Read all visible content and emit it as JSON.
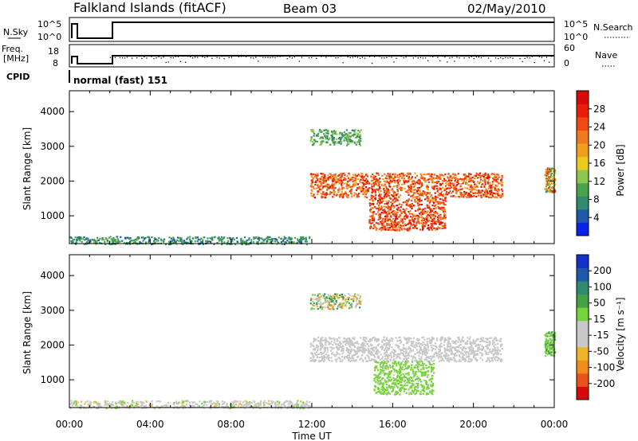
{
  "header": {
    "station": "Falkland Islands (fitACF)",
    "beam": "Beam 03",
    "date": "02/May/2010"
  },
  "strips": {
    "nsky_label": "N.Sky",
    "nsky_ticks": [
      "10^5",
      "10^0"
    ],
    "nsearch_label": "N.Search",
    "nsearch_ticks": [
      "10^5",
      "10^0"
    ],
    "freq_label": "Freq.",
    "freq_unit": "[MHz]",
    "freq_ticks": [
      "18",
      "8"
    ],
    "nave_label": "Nave",
    "nave_ticks": [
      "60",
      "0"
    ],
    "cpid_label": "CPID",
    "cpid_value": "normal (fast) 151"
  },
  "colors": {
    "power_scale": [
      "#0a22e6",
      "#1e5aa8",
      "#2f8a6e",
      "#4aa24a",
      "#8cc850",
      "#e8cc1e",
      "#f0a01e",
      "#f07a1e",
      "#ee4a12",
      "#e81e0a",
      "#d60a0a"
    ],
    "velocity_scale": [
      "#d60a0a",
      "#e8521e",
      "#f08c1e",
      "#f0b428",
      "#c8c8c8",
      "#c8c8c8",
      "#78d23c",
      "#46a046",
      "#2f8a6e",
      "#1e5aa8",
      "#1432c8"
    ]
  },
  "chart_data": [
    {
      "type": "heatmap",
      "name": "power",
      "xlabel": "",
      "ylabel": "Slant Range [km]",
      "ylim": [
        200,
        4600
      ],
      "yticks": [
        1000,
        2000,
        3000,
        4000
      ],
      "xlim_hours": [
        0,
        24
      ],
      "colorbar": {
        "label": "Power [dB]",
        "ticks": [
          "28",
          "24",
          "20",
          "16",
          "12",
          "8",
          "4"
        ],
        "range": [
          0,
          32
        ]
      },
      "regions": [
        {
          "t": [
            0.0,
            11.9
          ],
          "r": [
            200,
            420
          ],
          "value_range": [
            4,
            12
          ]
        },
        {
          "t": [
            11.9,
            21.4
          ],
          "r": [
            1550,
            2250
          ],
          "value_range": [
            18,
            30
          ]
        },
        {
          "t": [
            14.8,
            18.6
          ],
          "r": [
            600,
            1550
          ],
          "value_range": [
            20,
            30
          ]
        },
        {
          "t": [
            11.9,
            14.4
          ],
          "r": [
            3050,
            3500
          ],
          "value_range": [
            6,
            14
          ]
        },
        {
          "t": [
            23.5,
            24.0
          ],
          "r": [
            1700,
            2400
          ],
          "value_range": [
            6,
            28
          ]
        }
      ]
    },
    {
      "type": "heatmap",
      "name": "velocity",
      "xlabel": "Time UT",
      "ylabel": "Slant Range [km]",
      "ylim": [
        200,
        4600
      ],
      "yticks": [
        1000,
        2000,
        3000,
        4000
      ],
      "xlim_hours": [
        0,
        24
      ],
      "xticks": [
        "00:00",
        "04:00",
        "08:00",
        "12:00",
        "16:00",
        "20:00",
        "00:00"
      ],
      "colorbar": {
        "label": "Velocity [m s⁻¹]",
        "ticks": [
          "200",
          "100",
          "50",
          "15",
          "-15",
          "-50",
          "-100",
          "-200"
        ],
        "range": [
          -250,
          250
        ]
      },
      "regions": [
        {
          "t": [
            0.0,
            11.9
          ],
          "r": [
            200,
            420
          ],
          "value_range": [
            -80,
            40
          ]
        },
        {
          "t": [
            11.9,
            21.4
          ],
          "r": [
            1550,
            2250
          ],
          "value_range": [
            -20,
            20
          ]
        },
        {
          "t": [
            15.0,
            18.0
          ],
          "r": [
            600,
            1550
          ],
          "value_range": [
            20,
            60
          ]
        },
        {
          "t": [
            11.9,
            14.4
          ],
          "r": [
            3050,
            3500
          ],
          "value_range": [
            -150,
            150
          ]
        },
        {
          "t": [
            23.5,
            24.0
          ],
          "r": [
            1700,
            2400
          ],
          "value_range": [
            40,
            80
          ]
        }
      ]
    }
  ]
}
